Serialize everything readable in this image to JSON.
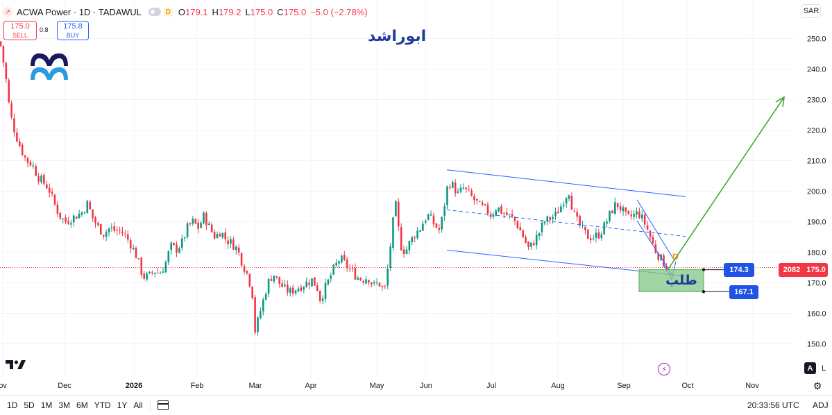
{
  "header": {
    "title": "ACWA Power · 1D · TADAWUL",
    "badge_letter": "D",
    "ohlc": {
      "o_label": "O",
      "o": "179.1",
      "h_label": "H",
      "h": "179.2",
      "l_label": "L",
      "l": "175.0",
      "c_label": "C",
      "c": "175.0",
      "change": "−5.0 (−2.78%)"
    }
  },
  "trade": {
    "sell_price": "175.0",
    "sell_label": "SELL",
    "spread": "0.8",
    "buy_price": "175.8",
    "buy_label": "BUY"
  },
  "annotations": {
    "title_ar": "ابوراشد",
    "zone_ar": "طلب",
    "pattern_letter": "D"
  },
  "currency": "SAR",
  "price_labels": {
    "target_upper": "174.3",
    "target_lower": "167.1",
    "volume": "2082",
    "last": "175.0"
  },
  "bottom_bar": {
    "ranges": [
      "1D",
      "5D",
      "1M",
      "3M",
      "6M",
      "YTD",
      "1Y",
      "All"
    ],
    "time": "20:33:56 UTC",
    "adj": "ADJ"
  },
  "scale_buttons": {
    "auto": "A",
    "log": "L"
  },
  "icons": [
    "tv-logo-icon",
    "calendar-icon",
    "gear-icon",
    "lightning-icon",
    "brand-logo-icon"
  ],
  "colors": {
    "up": "#089981",
    "down": "#f23645",
    "channel": "#2962ff",
    "arrow": "#43a534",
    "zone": "#81c784"
  },
  "chart_data": {
    "type": "candlestick",
    "y_ticks": [
      150,
      160,
      170,
      180,
      190,
      200,
      210,
      220,
      230,
      240,
      250
    ],
    "y_tick_labels": [
      "150.0",
      "160.0",
      "170.0",
      "180.0",
      "190.0",
      "200.0",
      "210.0",
      "220.0",
      "230.0",
      "240.0",
      "250.0"
    ],
    "ylim": [
      147.5,
      258
    ],
    "x_labels": [
      "ov",
      "Dec",
      "2026",
      "Feb",
      "Mar",
      "Apr",
      "May",
      "Jun",
      "Jul",
      "Aug",
      "Sep",
      "Oct",
      "Nov"
    ],
    "last_price": 175.0,
    "price_path": [
      [
        0,
        249
      ],
      [
        8,
        238
      ],
      [
        14,
        226
      ],
      [
        22,
        219
      ],
      [
        30,
        214
      ],
      [
        38,
        210
      ],
      [
        46,
        209
      ],
      [
        54,
        205
      ],
      [
        62,
        203
      ],
      [
        70,
        201
      ],
      [
        78,
        196
      ],
      [
        86,
        192
      ],
      [
        94,
        190
      ],
      [
        102,
        191
      ],
      [
        110,
        192
      ],
      [
        118,
        193
      ],
      [
        126,
        196
      ],
      [
        134,
        191
      ],
      [
        142,
        188
      ],
      [
        150,
        186
      ],
      [
        158,
        188
      ],
      [
        166,
        187
      ],
      [
        174,
        187
      ],
      [
        182,
        185
      ],
      [
        190,
        182
      ],
      [
        198,
        178
      ],
      [
        206,
        172
      ],
      [
        214,
        172
      ],
      [
        222,
        174
      ],
      [
        230,
        173
      ],
      [
        238,
        176
      ],
      [
        246,
        182
      ],
      [
        254,
        181
      ],
      [
        262,
        183
      ],
      [
        270,
        188
      ],
      [
        278,
        190
      ],
      [
        286,
        188
      ],
      [
        294,
        192
      ],
      [
        302,
        188
      ],
      [
        310,
        185
      ],
      [
        318,
        187
      ],
      [
        326,
        184
      ],
      [
        334,
        183
      ],
      [
        342,
        181
      ],
      [
        350,
        176
      ],
      [
        358,
        172
      ],
      [
        364,
        166
      ],
      [
        368,
        153
      ],
      [
        372,
        158
      ],
      [
        378,
        163
      ],
      [
        386,
        170
      ],
      [
        394,
        173
      ],
      [
        402,
        170
      ],
      [
        410,
        168
      ],
      [
        418,
        167
      ],
      [
        426,
        168
      ],
      [
        434,
        169
      ],
      [
        442,
        170
      ],
      [
        450,
        171
      ],
      [
        458,
        168
      ],
      [
        462,
        164
      ],
      [
        466,
        167
      ],
      [
        474,
        171
      ],
      [
        482,
        175
      ],
      [
        490,
        178
      ],
      [
        498,
        176
      ],
      [
        506,
        174
      ],
      [
        514,
        172
      ],
      [
        522,
        171
      ],
      [
        530,
        172
      ],
      [
        538,
        169
      ],
      [
        546,
        170
      ],
      [
        554,
        167
      ],
      [
        558,
        173
      ],
      [
        562,
        181
      ],
      [
        566,
        189
      ],
      [
        570,
        196
      ],
      [
        574,
        188
      ],
      [
        578,
        182
      ],
      [
        584,
        180
      ],
      [
        590,
        183
      ],
      [
        598,
        186
      ],
      [
        606,
        188
      ],
      [
        612,
        191
      ],
      [
        618,
        192
      ],
      [
        626,
        189
      ],
      [
        634,
        187
      ],
      [
        640,
        195
      ],
      [
        646,
        203
      ],
      [
        652,
        202
      ],
      [
        660,
        199
      ],
      [
        668,
        201
      ],
      [
        676,
        199
      ],
      [
        684,
        197
      ],
      [
        692,
        195
      ],
      [
        700,
        194
      ],
      [
        708,
        192
      ],
      [
        716,
        195
      ],
      [
        724,
        193
      ],
      [
        732,
        192
      ],
      [
        740,
        191
      ],
      [
        748,
        188
      ],
      [
        756,
        184
      ],
      [
        762,
        181
      ],
      [
        768,
        183
      ],
      [
        776,
        186
      ],
      [
        784,
        190
      ],
      [
        792,
        191
      ],
      [
        800,
        192
      ],
      [
        808,
        195
      ],
      [
        814,
        198
      ],
      [
        820,
        200
      ],
      [
        826,
        193
      ],
      [
        832,
        190
      ],
      [
        840,
        187
      ],
      [
        848,
        185
      ],
      [
        856,
        185
      ],
      [
        864,
        186
      ],
      [
        872,
        189
      ],
      [
        880,
        193
      ],
      [
        888,
        196
      ],
      [
        896,
        194
      ],
      [
        904,
        191
      ],
      [
        912,
        192
      ],
      [
        920,
        193
      ],
      [
        928,
        190
      ],
      [
        934,
        187
      ],
      [
        940,
        183
      ],
      [
        946,
        180
      ],
      [
        952,
        178
      ],
      [
        958,
        176
      ],
      [
        962,
        175
      ]
    ],
    "channel": {
      "upper": [
        [
          644,
          207
        ],
        [
          988,
          198.2
        ]
      ],
      "middle": [
        [
          644,
          193.9
        ],
        [
          988,
          185.2
        ]
      ],
      "lower": [
        [
          644,
          180.7
        ],
        [
          988,
          172.2
        ]
      ]
    },
    "wedge": {
      "upper": [
        [
          918,
          197.2
        ],
        [
          970,
          178
        ]
      ],
      "lower": [
        [
          918,
          190.3
        ],
        [
          970,
          172.2
        ]
      ]
    },
    "demand_zone": [
      174.3,
      167.1
    ],
    "projection_target": 230.8
  }
}
